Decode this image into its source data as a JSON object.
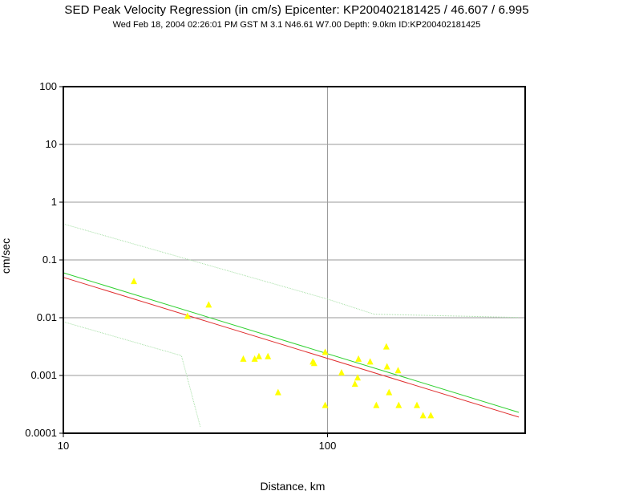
{
  "header": {
    "title": "SED Peak Velocity Regression (in cm/s) Epicenter: KP200402181425 / 46.607 / 6.995",
    "subtitle": "Wed Feb 18, 2004 02:26:01 PM GST    M 3.1    N46.61 W7.00   Depth: 9.0km   ID:KP200402181425"
  },
  "chart_data": {
    "type": "scatter",
    "title": "SED Peak Velocity Regression (in cm/s) Epicenter: KP200402181425 / 46.607 / 6.995",
    "xlabel": "Distance, km",
    "ylabel": "cm/sec",
    "xscale": "log",
    "yscale": "log",
    "xlim": [
      10,
      560
    ],
    "ylim": [
      0.0001,
      100
    ],
    "grid": true,
    "x_ticks": [
      {
        "value": 10,
        "label": "10"
      },
      {
        "value": 100,
        "label": "100"
      }
    ],
    "y_ticks": [
      {
        "value": 100,
        "label": "100"
      },
      {
        "value": 10,
        "label": "10"
      },
      {
        "value": 1,
        "label": "1"
      },
      {
        "value": 0.1,
        "label": "0.1"
      },
      {
        "value": 0.01,
        "label": "0.01"
      },
      {
        "value": 0.001,
        "label": "0.001"
      },
      {
        "value": 0.0001,
        "label": "0.0001"
      }
    ],
    "colors": {
      "stations": "#ffff00",
      "regression": "#e03030",
      "fit": "#30d030",
      "bounds": "#a8e0a8",
      "grid": "#9a9a9a",
      "frame": "#000000"
    },
    "series": [
      {
        "role": "stations",
        "marker": "triangle",
        "points": [
          [
            18.5,
            0.042
          ],
          [
            29.5,
            0.0105
          ],
          [
            35.5,
            0.0165
          ],
          [
            48,
            0.0019
          ],
          [
            53,
            0.0019
          ],
          [
            55,
            0.0021
          ],
          [
            59.5,
            0.0021
          ],
          [
            65,
            0.0005
          ],
          [
            88,
            0.0017
          ],
          [
            89,
            0.0016
          ],
          [
            98,
            0.0025
          ],
          [
            98,
            0.0003
          ],
          [
            113,
            0.0011
          ],
          [
            127,
            0.0007
          ],
          [
            130,
            0.0009
          ],
          [
            131,
            0.0019
          ],
          [
            145,
            0.0017
          ],
          [
            153,
            0.0003
          ],
          [
            167,
            0.0031
          ],
          [
            168,
            0.0014
          ],
          [
            171,
            0.0005
          ],
          [
            185,
            0.0012
          ],
          [
            186,
            0.0003
          ],
          [
            218,
            0.0003
          ],
          [
            230,
            0.0002
          ],
          [
            246,
            0.0002
          ]
        ]
      },
      {
        "role": "regression",
        "line": "solid",
        "points": [
          [
            10,
            0.05
          ],
          [
            530,
            0.00019
          ]
        ]
      },
      {
        "role": "fit",
        "line": "solid",
        "points": [
          [
            10,
            0.06
          ],
          [
            530,
            0.00023
          ]
        ]
      },
      {
        "role": "upper-bound",
        "line": "dotted",
        "points": [
          [
            10,
            0.42
          ],
          [
            28,
            0.11
          ],
          [
            100,
            0.021
          ],
          [
            150,
            0.0115
          ],
          [
            530,
            0.0101
          ]
        ]
      },
      {
        "role": "lower-bound",
        "line": "dotted",
        "points": [
          [
            10,
            0.0085
          ],
          [
            28,
            0.0022
          ],
          [
            33,
            0.00013
          ]
        ]
      }
    ]
  }
}
